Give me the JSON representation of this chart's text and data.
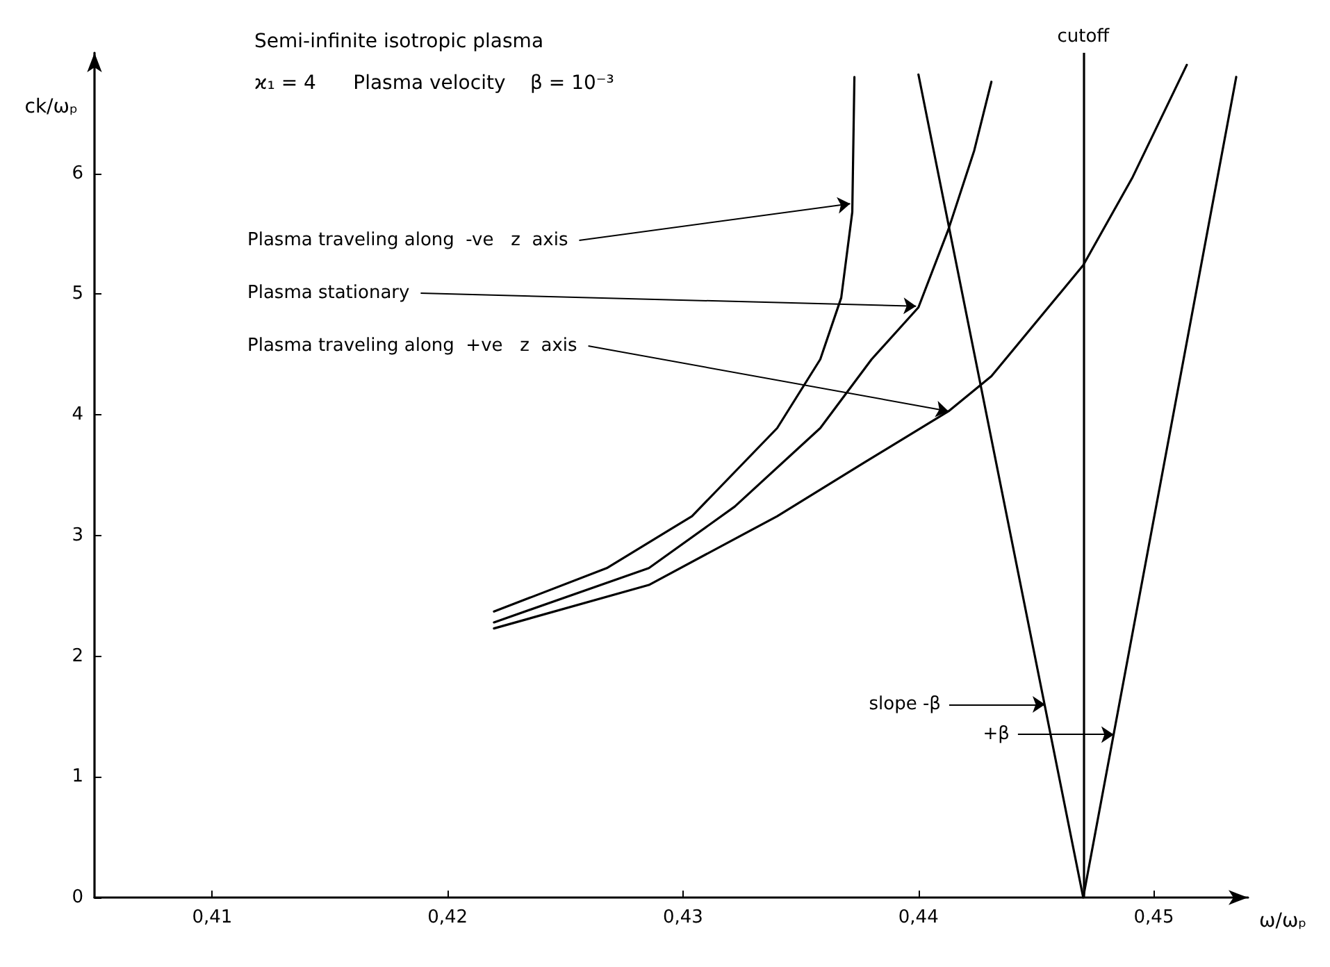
{
  "chart_data": {
    "type": "line",
    "title": "Semi-infinite isotropic plasma",
    "subtitle": "ϰ₁ = 4      Plasma velocity    β = 10⁻³",
    "xlabel": "ω/ωₚ",
    "ylabel": "ck/ωₚ",
    "xlim": [
      0.405,
      0.454
    ],
    "ylim": [
      0,
      7
    ],
    "xticks": [
      {
        "value": 0.41,
        "label": "0,41"
      },
      {
        "value": 0.42,
        "label": "0,42"
      },
      {
        "value": 0.43,
        "label": "0,43"
      },
      {
        "value": 0.44,
        "label": "0,44"
      },
      {
        "value": 0.45,
        "label": "0,45"
      }
    ],
    "yticks": [
      0,
      1,
      2,
      3,
      4,
      5,
      6
    ],
    "grid": false,
    "marker": "none",
    "line_style": "solid",
    "series": [
      {
        "color": "#000000",
        "x": [
          0.42197,
          0.42676,
          0.43038,
          0.434,
          0.43583,
          0.43672,
          0.43719,
          0.43728
        ],
        "values": [
          2.37,
          2.73,
          3.16,
          3.89,
          4.46,
          4.97,
          5.68,
          6.8
        ]
      },
      {
        "color": "#000000",
        "x": [
          0.42197,
          0.42855,
          0.4322,
          0.43583,
          0.43801,
          0.44,
          0.44128,
          0.44237,
          0.4431
        ],
        "values": [
          2.28,
          2.73,
          3.24,
          3.89,
          4.46,
          4.89,
          5.54,
          6.19,
          6.76
        ]
      },
      {
        "color": "#000000",
        "x": [
          0.42197,
          0.42855,
          0.434,
          0.43766,
          0.44128,
          0.4431,
          0.447,
          0.4491,
          0.4514
        ],
        "values": [
          2.23,
          2.59,
          3.16,
          3.6,
          4.03,
          4.32,
          5.24,
          5.97,
          6.9
        ]
      },
      {
        "color": "#000000",
        "x": [
          0.44,
          0.447
        ],
        "values": [
          6.82,
          0
        ]
      },
      {
        "color": "#000000",
        "x": [
          0.447,
          0.4535
        ],
        "values": [
          0,
          6.8
        ]
      }
    ],
    "ref_lines": [
      {
        "axis": "x",
        "value": 0.447,
        "label": "cutoff"
      }
    ],
    "annotations": [
      {
        "text": "Plasma traveling along  -ve   z  axis",
        "x": 0.4371,
        "y": 5.75
      },
      {
        "text": "Plasma stationary",
        "x": 0.4399,
        "y": 4.9
      },
      {
        "text": "Plasma traveling along  +ve   z  axis",
        "x": 0.44128,
        "y": 4.03
      },
      {
        "text": "slope -β",
        "x": 0.44538,
        "y": 1.6
      },
      {
        "text": "+β",
        "x": 0.4483,
        "y": 1.35
      }
    ]
  }
}
